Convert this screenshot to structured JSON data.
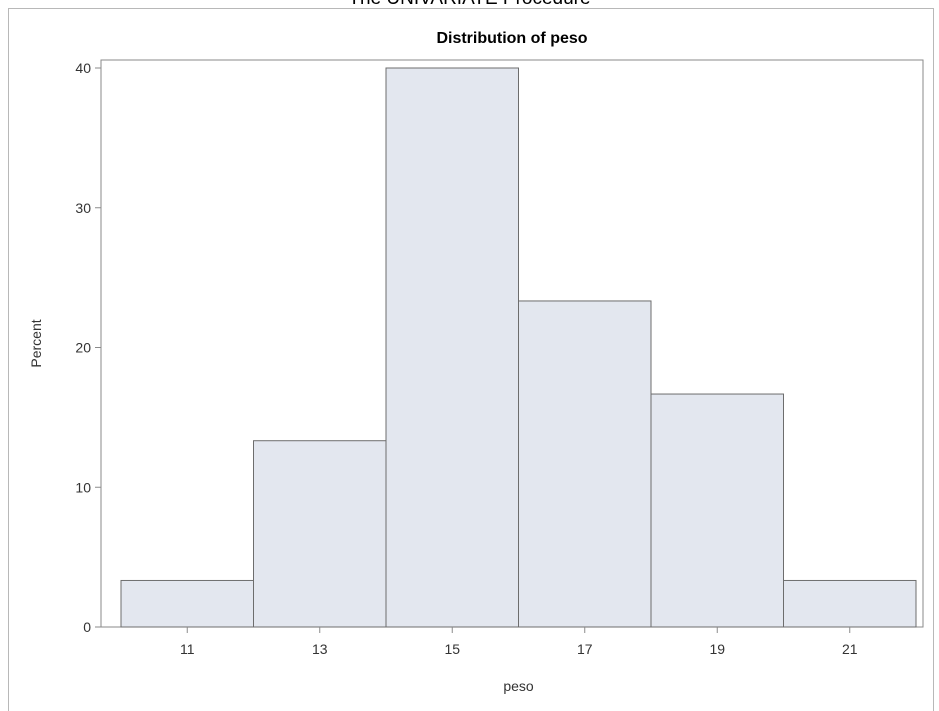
{
  "procedure_title": "The UNIVARIATE Procedure",
  "chart_data": {
    "type": "bar",
    "title": "Distribution of peso",
    "xlabel": "peso",
    "ylabel": "Percent",
    "bins": [
      {
        "start": 10,
        "end": 12,
        "value": 3.33
      },
      {
        "start": 12,
        "end": 14,
        "value": 13.33
      },
      {
        "start": 14,
        "end": 16,
        "value": 40
      },
      {
        "start": 16,
        "end": 18,
        "value": 23.33
      },
      {
        "start": 18,
        "end": 20,
        "value": 16.67
      },
      {
        "start": 20,
        "end": 22,
        "value": 3.33
      }
    ],
    "xticks": [
      11,
      13,
      15,
      17,
      19,
      21
    ],
    "yticks": [
      0,
      10,
      20,
      30,
      40
    ],
    "xlim": [
      10,
      22
    ],
    "ylim": [
      0,
      40
    ],
    "grid": false,
    "legend": "none",
    "colors": {
      "bar_fill": "#e3e7ef",
      "bar_stroke": "#6d6d6d",
      "axis": "#8a8a8a"
    }
  }
}
